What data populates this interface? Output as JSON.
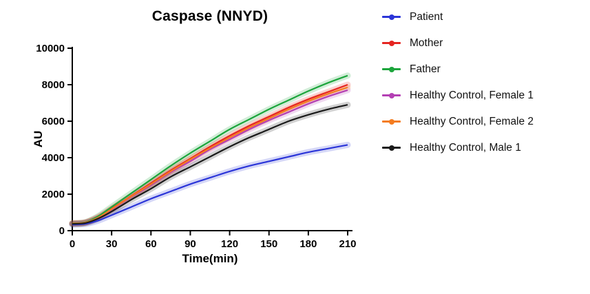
{
  "title": "Caspase (NNYD)",
  "chart_data": {
    "type": "line",
    "title": "Caspase (NNYD)",
    "xlabel": "Time(min)",
    "ylabel": "AU",
    "xlim": [
      0,
      210
    ],
    "ylim": [
      0,
      10000
    ],
    "xticks": [
      0,
      30,
      60,
      90,
      120,
      150,
      180,
      210
    ],
    "yticks": [
      0,
      2000,
      4000,
      6000,
      8000,
      10000
    ],
    "grid": false,
    "legend_position": "right",
    "axis_color": "#000000",
    "x": [
      0,
      10,
      20,
      30,
      45,
      60,
      75,
      90,
      105,
      120,
      135,
      150,
      165,
      180,
      195,
      210
    ],
    "series": [
      {
        "name": "Patient",
        "color": "#2b35d8",
        "values": [
          330,
          370,
          560,
          850,
          1300,
          1750,
          2150,
          2550,
          2900,
          3250,
          3550,
          3800,
          4050,
          4300,
          4500,
          4700
        ]
      },
      {
        "name": "Mother",
        "color": "#e52521",
        "values": [
          400,
          450,
          750,
          1200,
          1900,
          2600,
          3300,
          3950,
          4600,
          5200,
          5750,
          6250,
          6750,
          7200,
          7600,
          8000
        ]
      },
      {
        "name": "Father",
        "color": "#1ca53c",
        "values": [
          400,
          460,
          800,
          1300,
          2050,
          2800,
          3550,
          4250,
          4900,
          5550,
          6100,
          6650,
          7150,
          7650,
          8100,
          8500
        ]
      },
      {
        "name": "Healthy Control, Female 1",
        "color": "#b440b4",
        "values": [
          390,
          440,
          720,
          1150,
          1850,
          2500,
          3200,
          3800,
          4450,
          5000,
          5550,
          6050,
          6500,
          6950,
          7350,
          7700
        ]
      },
      {
        "name": "Healthy Control, Female 2",
        "color": "#f47c20",
        "values": [
          395,
          445,
          730,
          1180,
          1880,
          2550,
          3250,
          3900,
          4520,
          5100,
          5650,
          6150,
          6650,
          7100,
          7500,
          7850
        ]
      },
      {
        "name": "Healthy Control, Male 1",
        "color": "#1a1a1a",
        "values": [
          370,
          420,
          670,
          1050,
          1700,
          2300,
          2950,
          3500,
          4050,
          4600,
          5100,
          5550,
          6000,
          6350,
          6650,
          6900
        ]
      }
    ]
  }
}
